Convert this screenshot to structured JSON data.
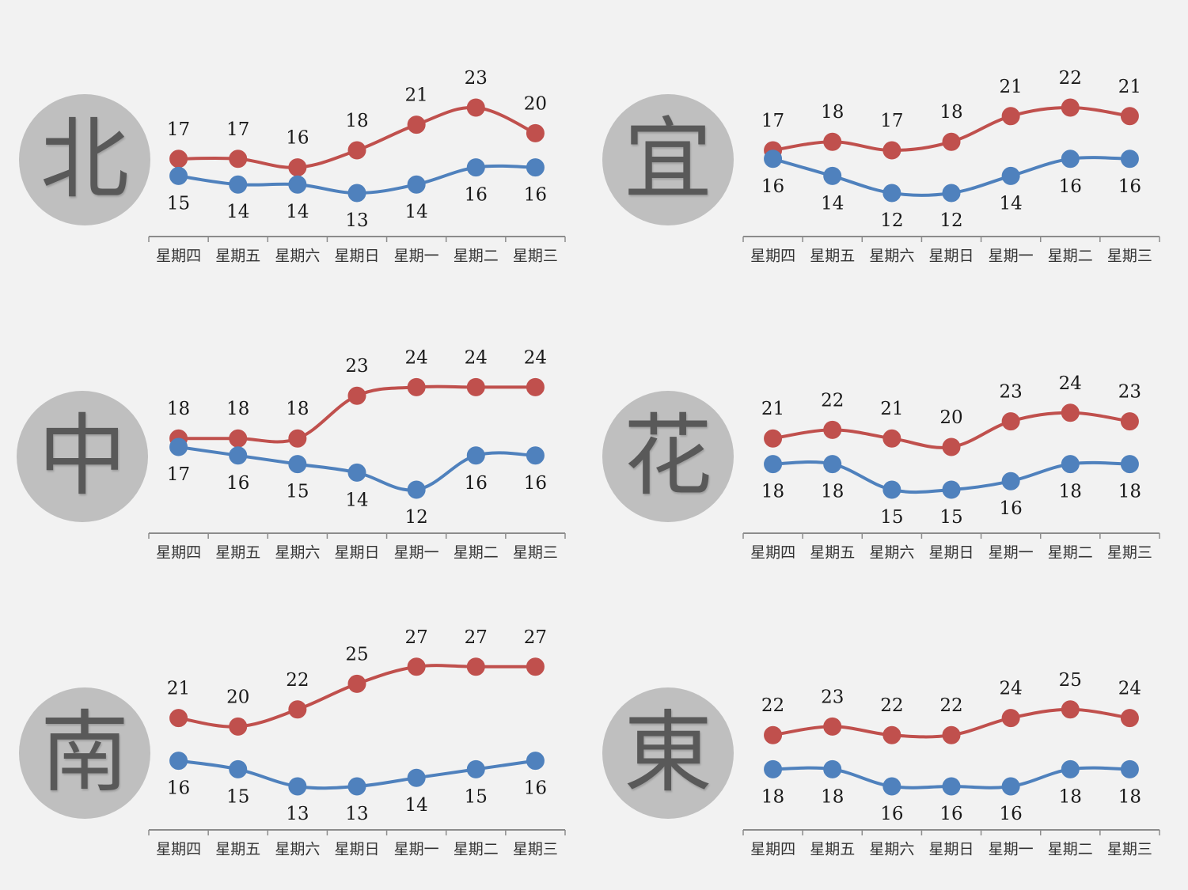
{
  "colors": {
    "high": "#c0504d",
    "low": "#4f81bd",
    "axis": "#8c8c8c",
    "badge": "#bfbfbf",
    "background": "#f2f2f2"
  },
  "chart_data": [
    {
      "type": "line",
      "region": "北",
      "categories": [
        "星期四",
        "星期五",
        "星期六",
        "星期日",
        "星期一",
        "星期二",
        "星期三"
      ],
      "series": [
        {
          "values": [
            17,
            17,
            16,
            18,
            21,
            23,
            20
          ]
        },
        {
          "values": [
            15,
            14,
            14,
            13,
            14,
            16,
            16
          ]
        }
      ]
    },
    {
      "type": "line",
      "region": "宜",
      "categories": [
        "星期四",
        "星期五",
        "星期六",
        "星期日",
        "星期一",
        "星期二",
        "星期三"
      ],
      "series": [
        {
          "values": [
            17,
            18,
            17,
            18,
            21,
            22,
            21
          ]
        },
        {
          "values": [
            16,
            14,
            12,
            12,
            14,
            16,
            16
          ]
        }
      ]
    },
    {
      "type": "line",
      "region": "中",
      "categories": [
        "星期四",
        "星期五",
        "星期六",
        "星期日",
        "星期一",
        "星期二",
        "星期三"
      ],
      "series": [
        {
          "values": [
            18,
            18,
            18,
            23,
            24,
            24,
            24
          ]
        },
        {
          "values": [
            17,
            16,
            15,
            14,
            12,
            16,
            16
          ]
        }
      ]
    },
    {
      "type": "line",
      "region": "花",
      "categories": [
        "星期四",
        "星期五",
        "星期六",
        "星期日",
        "星期一",
        "星期二",
        "星期三"
      ],
      "series": [
        {
          "values": [
            21,
            22,
            21,
            20,
            23,
            24,
            23
          ]
        },
        {
          "values": [
            18,
            18,
            15,
            15,
            16,
            18,
            18
          ]
        }
      ]
    },
    {
      "type": "line",
      "region": "南",
      "categories": [
        "星期四",
        "星期五",
        "星期六",
        "星期日",
        "星期一",
        "星期二",
        "星期三"
      ],
      "series": [
        {
          "values": [
            21,
            20,
            22,
            25,
            27,
            27,
            27
          ]
        },
        {
          "values": [
            16,
            15,
            13,
            13,
            14,
            15,
            16
          ]
        }
      ]
    },
    {
      "type": "line",
      "region": "東",
      "categories": [
        "星期四",
        "星期五",
        "星期六",
        "星期日",
        "星期一",
        "星期二",
        "星期三"
      ],
      "series": [
        {
          "values": [
            22,
            23,
            22,
            22,
            24,
            25,
            24
          ]
        },
        {
          "values": [
            18,
            18,
            16,
            16,
            16,
            18,
            18
          ]
        }
      ]
    }
  ]
}
